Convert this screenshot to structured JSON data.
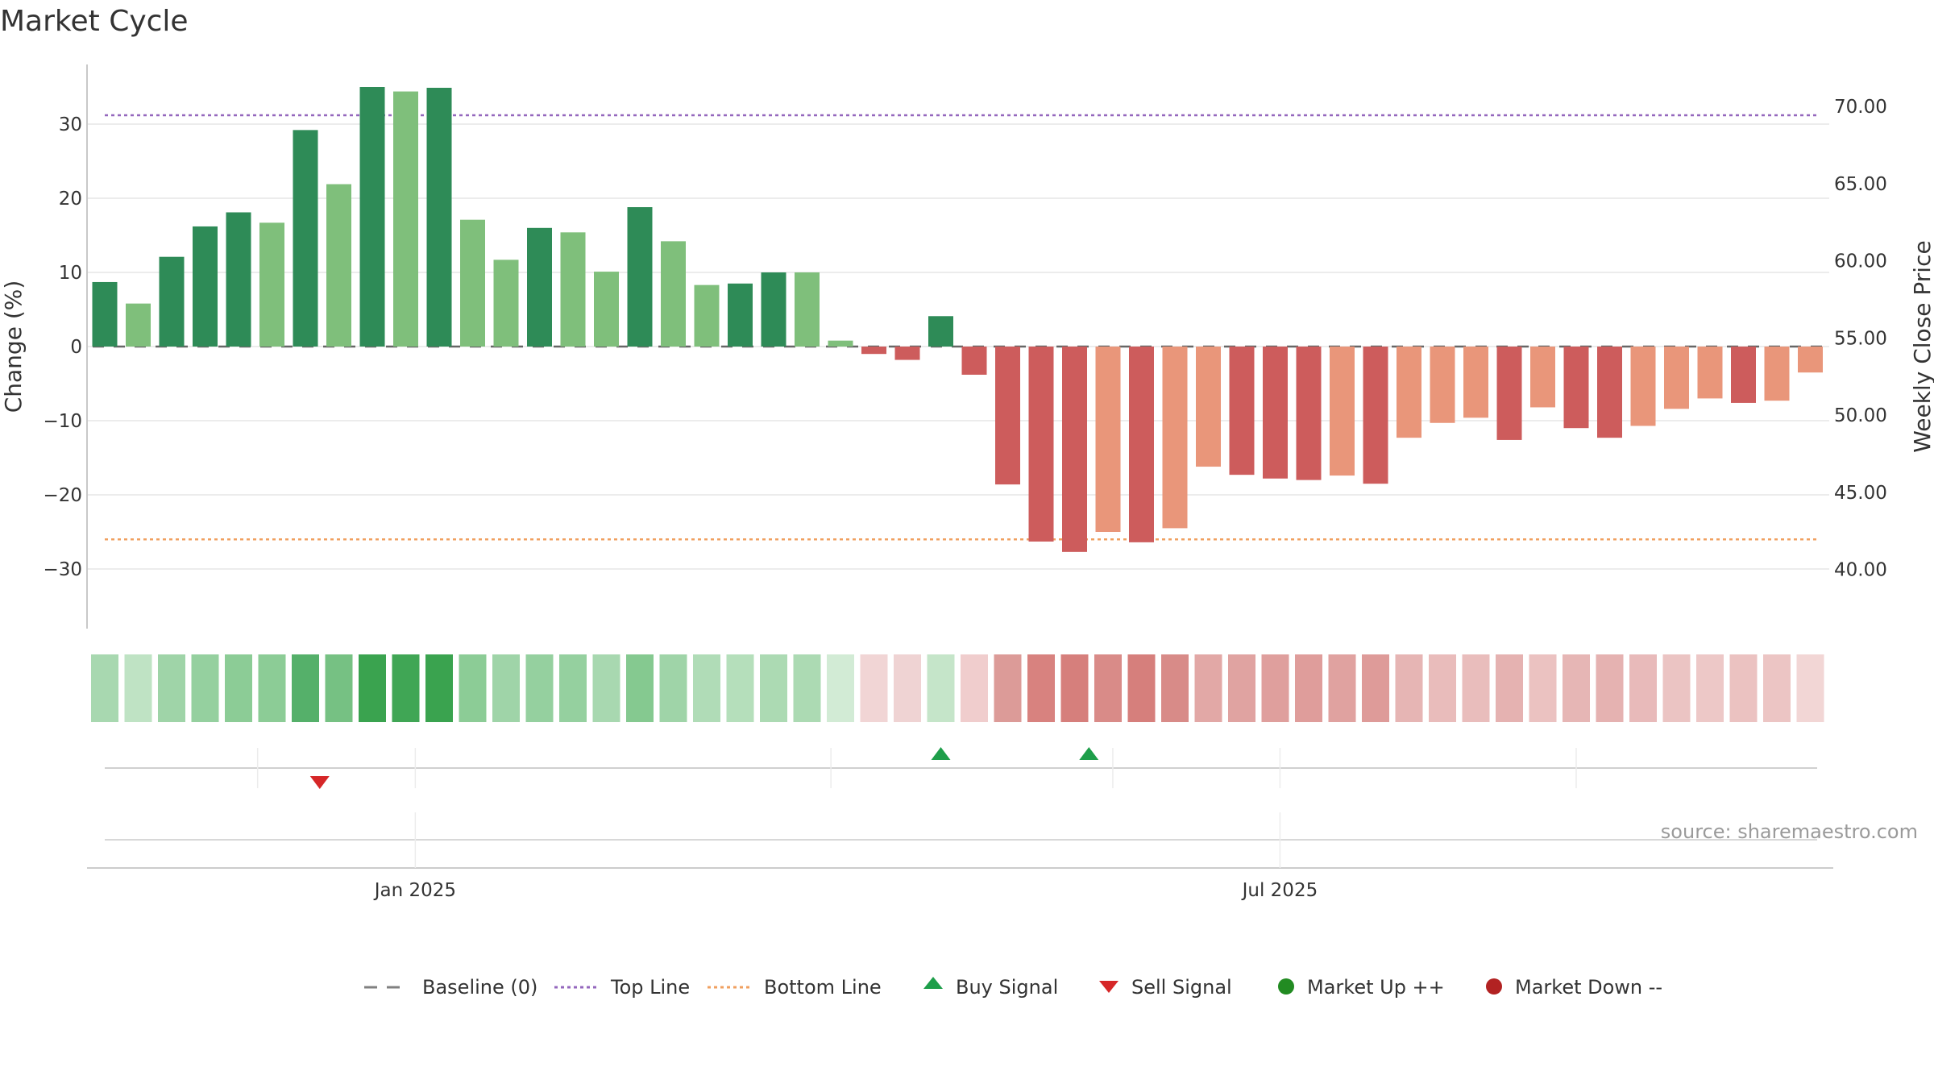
{
  "chart_data": {
    "type": "bar",
    "title": "Market Cycle",
    "ylabel": "Change (%)",
    "y2label": "Weekly Close Price",
    "ylim": [
      -38,
      38
    ],
    "y2lim": [
      36.8,
      73.2
    ],
    "yticks": [
      30,
      20,
      10,
      0,
      -10,
      -20,
      -30
    ],
    "ytick_labels": [
      "30",
      "20",
      "10",
      "0",
      "−10",
      "−20",
      "−30"
    ],
    "y2ticks": [
      70,
      65,
      60,
      55,
      50,
      45,
      40
    ],
    "y2tick_labels": [
      "70.00",
      "65.00",
      "60.00",
      "55.00",
      "50.00",
      "45.00",
      "40.00"
    ],
    "x_start": "2024-10-28",
    "x_end": "2025-09-29",
    "x_ticks": [
      {
        "date": "2025-01-01",
        "label": "Jan 2025"
      },
      {
        "date": "2025-07-01",
        "label": "Jul 2025"
      }
    ],
    "grid": true,
    "dates": [
      "2024-10-28",
      "2024-11-04",
      "2024-11-11",
      "2024-11-18",
      "2024-11-25",
      "2024-12-02",
      "2024-12-09",
      "2024-12-16",
      "2024-12-23",
      "2024-12-30",
      "2025-01-06",
      "2025-01-13",
      "2025-01-20",
      "2025-01-27",
      "2025-02-03",
      "2025-02-10",
      "2025-02-17",
      "2025-02-24",
      "2025-03-03",
      "2025-03-10",
      "2025-03-17",
      "2025-03-24",
      "2025-03-31",
      "2025-04-07",
      "2025-04-14",
      "2025-04-21",
      "2025-04-28",
      "2025-05-05",
      "2025-05-12",
      "2025-05-19",
      "2025-05-26",
      "2025-06-02",
      "2025-06-09",
      "2025-06-16",
      "2025-06-23",
      "2025-06-30",
      "2025-07-07",
      "2025-07-14",
      "2025-07-21",
      "2025-07-28",
      "2025-08-04",
      "2025-08-11",
      "2025-08-18",
      "2025-08-25",
      "2025-09-01",
      "2025-09-08",
      "2025-09-15",
      "2025-09-22",
      "2025-09-29"
    ],
    "series": [
      {
        "name": "Change (%)",
        "values": [
          8.7,
          5.8,
          12.1,
          16.2,
          18.1,
          16.7,
          29.2,
          21.9,
          35.0,
          34.4,
          34.9,
          17.1,
          11.7,
          16.0,
          15.4,
          10.1,
          18.8,
          14.2,
          8.3,
          8.5,
          10.0,
          10.0,
          0.8,
          -1.0,
          -1.8,
          4.1,
          -3.8,
          -18.6,
          -26.3,
          -27.7,
          -25.0,
          -26.4,
          -24.5,
          -16.2,
          -17.3,
          -17.8,
          -18.0,
          -17.4,
          -18.5,
          -12.3,
          -10.3,
          -9.6,
          -12.6,
          -8.2,
          -11.0,
          -12.3,
          -10.7,
          -8.4,
          -7.0
        ],
        "colors": [
          "#2e8b57",
          "#7fbf7b",
          "#2e8b57",
          "#2e8b57",
          "#2e8b57",
          "#7fbf7b",
          "#2e8b57",
          "#7fbf7b",
          "#2e8b57",
          "#7fbf7b",
          "#2e8b57",
          "#7fbf7b",
          "#7fbf7b",
          "#2e8b57",
          "#7fbf7b",
          "#7fbf7b",
          "#2e8b57",
          "#7fbf7b",
          "#7fbf7b",
          "#2e8b57",
          "#2e8b57",
          "#7fbf7b",
          "#7fbf7b",
          "#cd5c5c",
          "#cd5c5c",
          "#2e8b57",
          "#cd5c5c",
          "#cd5c5c",
          "#cd5c5c",
          "#cd5c5c",
          "#e9967a",
          "#cd5c5c",
          "#e9967a",
          "#e9967a",
          "#cd5c5c",
          "#cd5c5c",
          "#cd5c5c",
          "#e9967a",
          "#cd5c5c",
          "#e9967a",
          "#e9967a",
          "#e9967a",
          "#cd5c5c",
          "#e9967a",
          "#cd5c5c",
          "#cd5c5c",
          "#e9967a",
          "#e9967a",
          "#e9967a"
        ]
      }
    ],
    "extra_bars": [
      {
        "date": "2025-10-06",
        "value": -7.6,
        "color": "#cd5c5c"
      },
      {
        "date": "2025-10-13",
        "value": -7.3,
        "color": "#e9967a"
      },
      {
        "date": "2025-10-20",
        "value": -3.5,
        "color": "#e9967a"
      }
    ],
    "heat_strip": [
      "#a8d8b0",
      "#bfe3c4",
      "#9fd4a8",
      "#95d09f",
      "#8ccc96",
      "#8ccc96",
      "#55b06a",
      "#76c183",
      "#3aa34f",
      "#40a655",
      "#3aa34f",
      "#8ccc96",
      "#9fd4a8",
      "#95d09f",
      "#95d09f",
      "#a8d8b0",
      "#85c990",
      "#9fd4a8",
      "#b0dcb7",
      "#b5dfbb",
      "#acdab3",
      "#acdab3",
      "#d2ebd5",
      "#f1d5d5",
      "#efd3d3",
      "#c5e5c9",
      "#f0cdcd",
      "#dc9b98",
      "#d8827f",
      "#d67f7c",
      "#d98b88",
      "#d67f7c",
      "#d88b88",
      "#e2a8a6",
      "#e0a3a1",
      "#df9f9d",
      "#df9d9b",
      "#e0a2a0",
      "#de9b99",
      "#e6b5b4",
      "#e9bcbb",
      "#e9bdbc",
      "#e5b2b1",
      "#ebc2c1",
      "#e6b6b5",
      "#e5b2b1",
      "#e8baba",
      "#ebc4c3",
      "#edc8c7",
      "#ebc2c1",
      "#ecc5c4",
      "#f2d6d5"
    ],
    "top_line": 31.2,
    "bottom_line": -26.0,
    "buy_signals": [
      "2025-04-21",
      "2025-05-22"
    ],
    "sell_signals": [
      "2024-12-12"
    ],
    "signal_gridlines": [
      "2024-11-29",
      "2025-01-01",
      "2025-03-29",
      "2025-05-27",
      "2025-07-01",
      "2025-09-01"
    ],
    "legend": [
      {
        "label": "Baseline (0)",
        "kind": "dash",
        "color": "#808080"
      },
      {
        "label": "Top Line",
        "kind": "dotted",
        "color": "#9467bd"
      },
      {
        "label": "Bottom Line",
        "kind": "dotted",
        "color": "#f0a060"
      },
      {
        "label": "Buy Signal",
        "kind": "triangle-up",
        "color": "#1e9e4a"
      },
      {
        "label": "Sell Signal",
        "kind": "triangle-down",
        "color": "#d62728"
      },
      {
        "label": "Market Up ++",
        "kind": "dot",
        "color": "#228b22"
      },
      {
        "label": "Market Down --",
        "kind": "dot",
        "color": "#b22222"
      }
    ],
    "legend_placement": "bottom",
    "source": "source: sharemaestro.com"
  }
}
